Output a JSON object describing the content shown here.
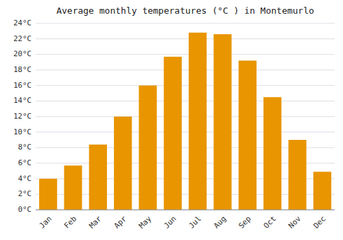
{
  "chart_data": {
    "type": "bar",
    "title": "Average monthly temperatures (°C ) in Montemurlo",
    "categories": [
      "Jan",
      "Feb",
      "Mar",
      "Apr",
      "May",
      "Jun",
      "Jul",
      "Aug",
      "Sep",
      "Oct",
      "Nov",
      "Dec"
    ],
    "values": [
      4.0,
      5.7,
      8.4,
      12.0,
      16.0,
      19.7,
      22.8,
      22.6,
      19.2,
      14.5,
      9.0,
      4.9
    ],
    "color": "#E89500",
    "ylim": [
      0,
      24
    ],
    "yticks": [
      {
        "value": 0,
        "label": "0°C"
      },
      {
        "value": 2,
        "label": "2°C"
      },
      {
        "value": 4,
        "label": "4°C"
      },
      {
        "value": 6,
        "label": "6°C"
      },
      {
        "value": 8,
        "label": "8°C"
      },
      {
        "value": 10,
        "label": "10°C"
      },
      {
        "value": 12,
        "label": "12°C"
      },
      {
        "value": 14,
        "label": "14°C"
      },
      {
        "value": 16,
        "label": "16°C"
      },
      {
        "value": 18,
        "label": "18°C"
      },
      {
        "value": 20,
        "label": "20°C"
      },
      {
        "value": 22,
        "label": "22°C"
      },
      {
        "value": 24,
        "label": "24°C"
      }
    ],
    "grid": true
  }
}
